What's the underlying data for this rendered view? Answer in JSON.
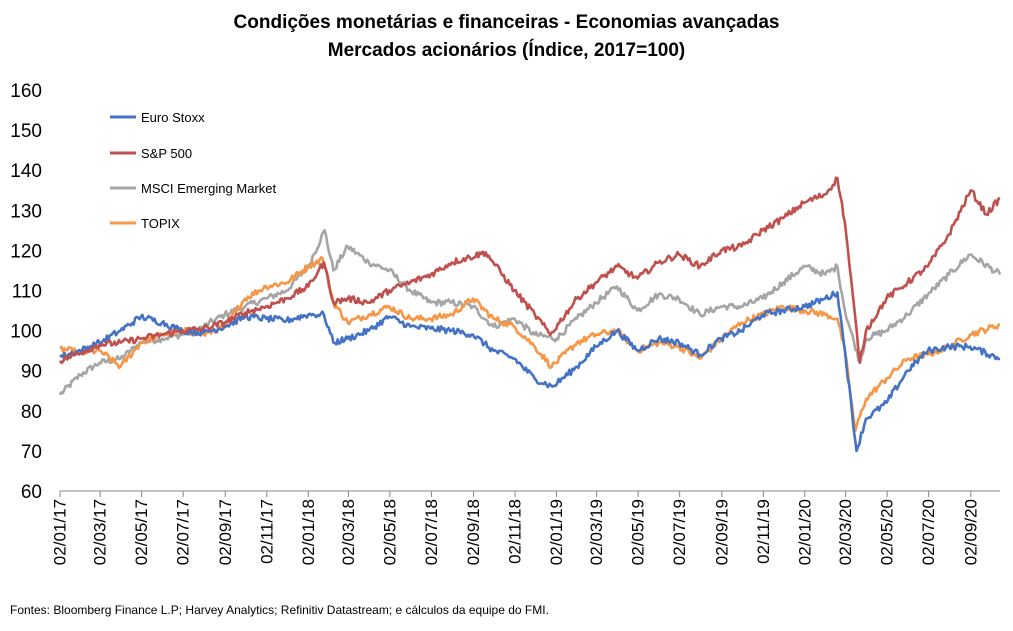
{
  "chart_data": {
    "type": "line",
    "title": "Condições monetárias e financeiras - Economias avançadas",
    "subtitle": "Mercados acionários (Índice, 2017=100)",
    "source": "Fontes: Bloomberg Finance L.P; Harvey Analytics; Refinitiv Datastream; e cálculos da equipe do FMI.",
    "ylim": [
      60,
      160
    ],
    "yticks": [
      "60",
      "70",
      "80",
      "90",
      "100",
      "110",
      "120",
      "130",
      "140",
      "150",
      "160"
    ],
    "xlim": [
      "2017-01-02",
      "2020-10-15"
    ],
    "xtick_labels": [
      "02/01/17",
      "02/03/17",
      "02/05/17",
      "02/07/17",
      "02/09/17",
      "02/11/17",
      "02/01/18",
      "02/03/18",
      "02/05/18",
      "02/07/18",
      "02/09/18",
      "02/11/18",
      "02/01/19",
      "02/03/19",
      "02/05/19",
      "02/07/19",
      "02/09/19",
      "02/11/19",
      "02/01/20",
      "02/03/20",
      "02/05/20",
      "02/07/20",
      "02/09/20"
    ],
    "grid": false,
    "legend_position": "top-left",
    "series": [
      {
        "name": "Euro Stoxx",
        "color": "#4472C4",
        "x": [
          "2017-01-02",
          "2017-02-01",
          "2017-03-01",
          "2017-04-01",
          "2017-05-01",
          "2017-06-01",
          "2017-07-01",
          "2017-08-01",
          "2017-09-01",
          "2017-10-01",
          "2017-11-01",
          "2017-12-01",
          "2018-01-02",
          "2018-01-25",
          "2018-02-08",
          "2018-03-01",
          "2018-04-01",
          "2018-05-01",
          "2018-06-01",
          "2018-07-01",
          "2018-08-01",
          "2018-09-01",
          "2018-10-01",
          "2018-11-01",
          "2018-12-01",
          "2018-12-27",
          "2019-02-01",
          "2019-03-01",
          "2019-04-01",
          "2019-05-01",
          "2019-06-01",
          "2019-07-01",
          "2019-08-01",
          "2019-09-01",
          "2019-10-01",
          "2019-11-01",
          "2019-12-01",
          "2020-01-02",
          "2020-02-01",
          "2020-02-19",
          "2020-03-01",
          "2020-03-18",
          "2020-04-01",
          "2020-05-01",
          "2020-06-01",
          "2020-07-01",
          "2020-08-01",
          "2020-09-01",
          "2020-10-15"
        ],
        "values": [
          93.5,
          95,
          97,
          100,
          103.5,
          102,
          100,
          99.5,
          101,
          103.5,
          103,
          102.5,
          104,
          104,
          97,
          98,
          100,
          103.5,
          101,
          100.5,
          100,
          99,
          95,
          93,
          88,
          86,
          91,
          96,
          100,
          95,
          98,
          97,
          94,
          98,
          100,
          104,
          105,
          106,
          108,
          109.5,
          95,
          70,
          78,
          82,
          90,
          95,
          96,
          96,
          93
        ]
      },
      {
        "name": "S&P 500",
        "color": "#C0504D",
        "x": [
          "2017-01-02",
          "2017-02-01",
          "2017-03-01",
          "2017-04-01",
          "2017-05-01",
          "2017-06-01",
          "2017-07-01",
          "2017-08-01",
          "2017-09-01",
          "2017-10-01",
          "2017-11-01",
          "2017-12-01",
          "2018-01-02",
          "2018-01-25",
          "2018-02-08",
          "2018-03-01",
          "2018-04-01",
          "2018-05-01",
          "2018-06-01",
          "2018-07-01",
          "2018-08-01",
          "2018-09-20",
          "2018-10-01",
          "2018-11-01",
          "2018-12-01",
          "2018-12-24",
          "2019-02-01",
          "2019-03-01",
          "2019-04-01",
          "2019-05-01",
          "2019-06-01",
          "2019-07-01",
          "2019-08-01",
          "2019-09-01",
          "2019-10-01",
          "2019-11-01",
          "2019-12-01",
          "2020-01-02",
          "2020-02-01",
          "2020-02-19",
          "2020-03-01",
          "2020-03-23",
          "2020-04-01",
          "2020-05-01",
          "2020-06-01",
          "2020-07-01",
          "2020-08-01",
          "2020-09-02",
          "2020-09-25",
          "2020-10-15"
        ],
        "values": [
          92.5,
          94.5,
          96.5,
          97,
          98,
          99,
          100,
          100.5,
          102,
          104.5,
          106,
          108,
          111,
          117,
          107,
          108,
          107,
          110,
          112,
          114,
          117,
          119.5,
          117,
          110,
          104,
          99,
          108,
          112,
          116,
          113,
          117,
          119,
          116,
          120,
          121,
          125,
          128,
          132,
          134,
          138,
          127,
          92,
          100,
          108,
          112,
          116,
          124,
          135,
          129,
          133
        ]
      },
      {
        "name": "MSCI Emerging Market",
        "color": "#A5A5A5",
        "x": [
          "2017-01-02",
          "2017-02-01",
          "2017-03-01",
          "2017-04-01",
          "2017-05-01",
          "2017-06-01",
          "2017-07-01",
          "2017-08-01",
          "2017-09-01",
          "2017-10-01",
          "2017-11-01",
          "2017-12-01",
          "2018-01-02",
          "2018-01-26",
          "2018-02-08",
          "2018-03-01",
          "2018-04-01",
          "2018-05-01",
          "2018-06-01",
          "2018-07-01",
          "2018-08-01",
          "2018-09-01",
          "2018-10-01",
          "2018-11-01",
          "2018-12-01",
          "2019-01-02",
          "2019-02-01",
          "2019-03-01",
          "2019-04-01",
          "2019-05-01",
          "2019-06-01",
          "2019-07-01",
          "2019-08-01",
          "2019-09-01",
          "2019-10-01",
          "2019-11-01",
          "2019-12-01",
          "2020-01-02",
          "2020-02-01",
          "2020-02-19",
          "2020-03-01",
          "2020-03-23",
          "2020-04-01",
          "2020-05-01",
          "2020-06-01",
          "2020-07-01",
          "2020-08-01",
          "2020-09-01",
          "2020-10-15"
        ],
        "values": [
          84,
          89,
          92,
          93,
          97,
          98,
          99,
          101,
          104,
          106,
          108,
          110,
          116,
          125,
          115,
          121,
          117,
          115,
          110,
          107,
          107,
          106,
          101,
          103,
          99,
          98,
          103,
          107,
          111,
          105,
          109,
          108,
          104,
          106,
          106,
          108,
          112,
          116,
          114,
          116,
          105,
          92,
          98,
          100,
          104,
          109,
          114,
          119,
          114
        ]
      },
      {
        "name": "TOPIX",
        "color": "#F79646",
        "x": [
          "2017-01-02",
          "2017-02-01",
          "2017-03-01",
          "2017-04-01",
          "2017-05-01",
          "2017-06-01",
          "2017-07-01",
          "2017-08-01",
          "2017-09-01",
          "2017-10-01",
          "2017-11-01",
          "2017-12-01",
          "2018-01-02",
          "2018-01-23",
          "2018-02-08",
          "2018-03-01",
          "2018-04-01",
          "2018-05-01",
          "2018-06-01",
          "2018-07-01",
          "2018-08-01",
          "2018-09-01",
          "2018-10-01",
          "2018-11-01",
          "2018-12-01",
          "2018-12-26",
          "2019-02-01",
          "2019-03-01",
          "2019-04-01",
          "2019-05-01",
          "2019-06-01",
          "2019-07-01",
          "2019-08-01",
          "2019-09-01",
          "2019-10-01",
          "2019-11-01",
          "2019-12-01",
          "2020-01-02",
          "2020-02-01",
          "2020-02-19",
          "2020-03-01",
          "2020-03-16",
          "2020-04-01",
          "2020-05-01",
          "2020-06-01",
          "2020-07-01",
          "2020-08-01",
          "2020-09-01",
          "2020-10-15"
        ],
        "values": [
          95.5,
          94.5,
          95,
          91,
          97,
          99,
          100,
          99,
          101,
          108,
          111,
          112,
          116,
          118,
          107,
          102,
          104,
          106,
          103,
          103,
          104,
          108,
          103,
          101,
          96,
          91,
          97,
          99,
          100,
          95,
          97,
          96,
          93,
          98,
          102,
          104,
          106,
          105,
          104,
          103,
          95,
          75,
          83,
          88,
          93,
          94,
          96,
          99,
          101.5
        ]
      }
    ]
  }
}
